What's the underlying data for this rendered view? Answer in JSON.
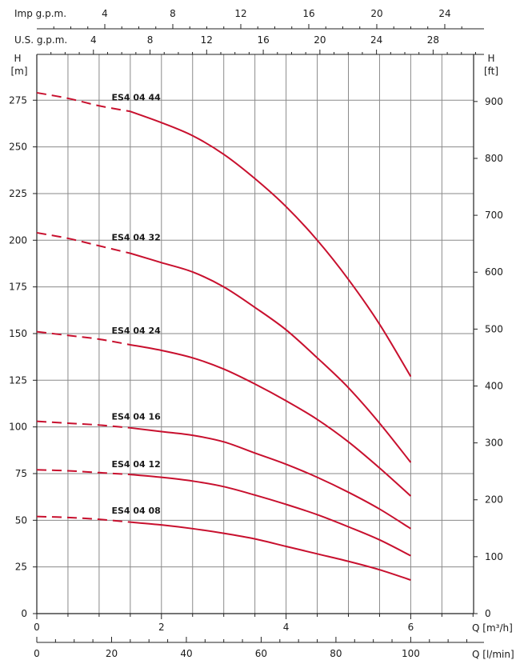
{
  "chart_data": {
    "type": "line",
    "title": "",
    "colors": {
      "curve": "#c8102e",
      "grid": "#8a8a8a",
      "axis": "#222222"
    },
    "x_axis_m3h": {
      "label": "Q [m³/h]",
      "range": [
        0,
        7
      ],
      "ticks": [
        0,
        2,
        4,
        6
      ]
    },
    "x_axis_lmin": {
      "label": "Q [l/min]",
      "range": [
        0,
        116.67
      ],
      "ticks": [
        0,
        20,
        40,
        60,
        80,
        100
      ]
    },
    "top_axis_imp": {
      "label": "Imp g.p.m.",
      "ticks": [
        4,
        8,
        12,
        16,
        20,
        24
      ]
    },
    "top_axis_us": {
      "label": "U.S. g.p.m.",
      "ticks": [
        4,
        8,
        12,
        16,
        20,
        24,
        28
      ]
    },
    "y_axis_m": {
      "label_line1": "H",
      "label_line2": "[m]",
      "range": [
        0,
        283
      ],
      "ticks": [
        0,
        25,
        50,
        75,
        100,
        125,
        150,
        175,
        200,
        225,
        250,
        275
      ]
    },
    "y_axis_ft": {
      "label_line1": "H",
      "label_line2": "[ft]",
      "ticks": [
        0,
        100,
        200,
        300,
        400,
        500,
        600,
        700,
        800,
        900
      ]
    },
    "grid": true,
    "series": [
      {
        "name": "ES4 04 44",
        "label_q": 1.2,
        "dashed_to": 1.5,
        "points": [
          [
            0,
            279
          ],
          [
            0.5,
            276
          ],
          [
            1.0,
            272
          ],
          [
            1.5,
            269
          ],
          [
            2.0,
            263
          ],
          [
            2.5,
            256
          ],
          [
            3.0,
            246
          ],
          [
            3.5,
            233
          ],
          [
            4.0,
            218
          ],
          [
            4.5,
            200
          ],
          [
            5.0,
            179
          ],
          [
            5.5,
            155
          ],
          [
            6.0,
            127
          ]
        ]
      },
      {
        "name": "ES4 04 32",
        "label_q": 1.2,
        "dashed_to": 1.5,
        "points": [
          [
            0,
            204
          ],
          [
            0.5,
            201
          ],
          [
            1.0,
            197
          ],
          [
            1.5,
            193
          ],
          [
            2.0,
            188
          ],
          [
            2.5,
            183
          ],
          [
            3.0,
            175
          ],
          [
            3.5,
            164
          ],
          [
            4.0,
            152
          ],
          [
            4.5,
            137
          ],
          [
            5.0,
            121
          ],
          [
            5.5,
            102
          ],
          [
            6.0,
            81
          ]
        ]
      },
      {
        "name": "ES4 04 24",
        "label_q": 1.2,
        "dashed_to": 1.5,
        "points": [
          [
            0,
            151
          ],
          [
            0.5,
            149
          ],
          [
            1.0,
            147
          ],
          [
            1.5,
            144
          ],
          [
            2.0,
            141
          ],
          [
            2.5,
            137
          ],
          [
            3.0,
            131
          ],
          [
            3.5,
            123
          ],
          [
            4.0,
            114
          ],
          [
            4.5,
            104
          ],
          [
            5.0,
            92
          ],
          [
            5.5,
            78
          ],
          [
            6.0,
            63
          ]
        ]
      },
      {
        "name": "ES4 04 16",
        "label_q": 1.2,
        "dashed_to": 1.5,
        "points": [
          [
            0,
            103
          ],
          [
            0.5,
            102
          ],
          [
            1.0,
            101
          ],
          [
            1.5,
            99.5
          ],
          [
            2.0,
            97.5
          ],
          [
            2.5,
            95.5
          ],
          [
            3.0,
            92
          ],
          [
            3.5,
            86
          ],
          [
            4.0,
            80
          ],
          [
            4.5,
            73
          ],
          [
            5.0,
            65
          ],
          [
            5.5,
            56
          ],
          [
            6.0,
            45.5
          ]
        ]
      },
      {
        "name": "ES4 04 12",
        "label_q": 1.2,
        "dashed_to": 1.5,
        "points": [
          [
            0,
            77
          ],
          [
            0.5,
            76.5
          ],
          [
            1.0,
            75.5
          ],
          [
            1.5,
            74.5
          ],
          [
            2.0,
            73
          ],
          [
            2.5,
            71
          ],
          [
            3.0,
            68
          ],
          [
            3.5,
            63.5
          ],
          [
            4.0,
            58.5
          ],
          [
            4.5,
            53
          ],
          [
            5.0,
            46.5
          ],
          [
            5.5,
            39.5
          ],
          [
            6.0,
            31
          ]
        ]
      },
      {
        "name": "ES4 04 08",
        "label_q": 1.2,
        "dashed_to": 1.5,
        "points": [
          [
            0,
            52
          ],
          [
            0.5,
            51.5
          ],
          [
            1.0,
            50.5
          ],
          [
            1.5,
            49
          ],
          [
            2.0,
            47.5
          ],
          [
            2.5,
            45.5
          ],
          [
            3.0,
            43
          ],
          [
            3.5,
            40
          ],
          [
            4.0,
            36
          ],
          [
            4.5,
            32
          ],
          [
            5.0,
            28
          ],
          [
            5.5,
            23.5
          ],
          [
            6.0,
            18
          ]
        ]
      }
    ]
  }
}
